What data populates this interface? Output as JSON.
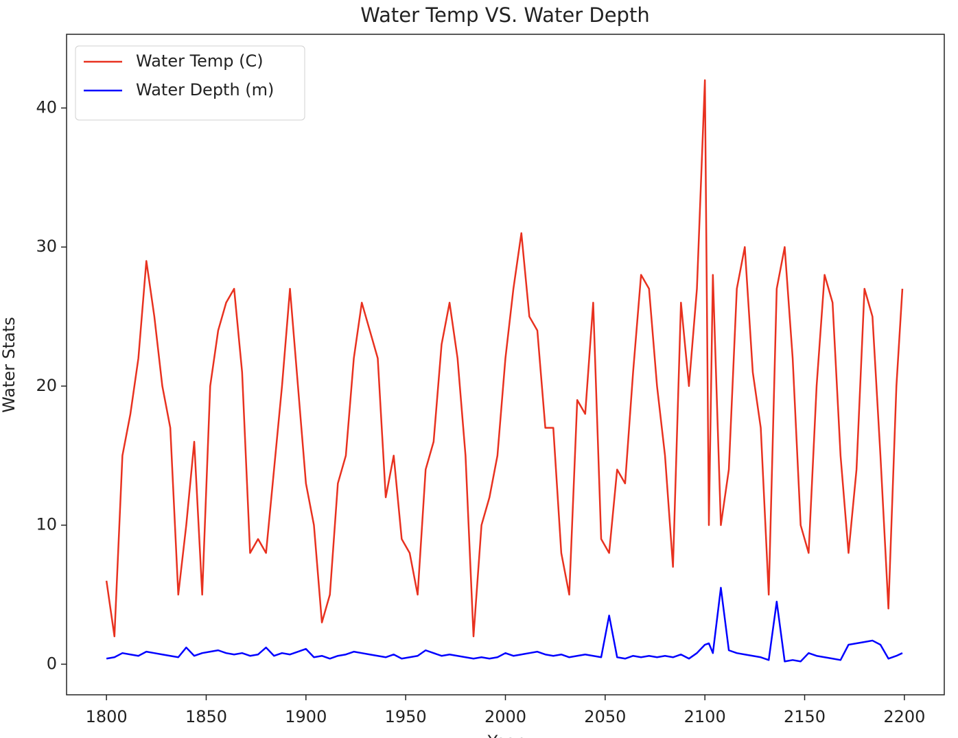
{
  "chart_data": {
    "type": "line",
    "title": "Water Temp VS. Water Depth",
    "xlabel": "Year",
    "ylabel": "Water Stats",
    "x": [
      1800,
      1804,
      1808,
      1812,
      1816,
      1820,
      1824,
      1828,
      1832,
      1836,
      1840,
      1844,
      1848,
      1852,
      1856,
      1860,
      1864,
      1868,
      1872,
      1876,
      1880,
      1884,
      1888,
      1892,
      1896,
      1900,
      1904,
      1908,
      1912,
      1916,
      1920,
      1924,
      1928,
      1932,
      1936,
      1940,
      1944,
      1948,
      1952,
      1956,
      1960,
      1964,
      1968,
      1972,
      1976,
      1980,
      1984,
      1988,
      1992,
      1996,
      2000,
      2004,
      2008,
      2012,
      2016,
      2020,
      2024,
      2028,
      2032,
      2036,
      2040,
      2044,
      2048,
      2052,
      2056,
      2060,
      2064,
      2068,
      2072,
      2076,
      2080,
      2084,
      2088,
      2092,
      2096,
      2100,
      2102,
      2104,
      2108,
      2112,
      2116,
      2120,
      2124,
      2128,
      2132,
      2136,
      2140,
      2144,
      2148,
      2152,
      2156,
      2160,
      2164,
      2168,
      2172,
      2176,
      2180,
      2184,
      2188,
      2192,
      2196,
      2199
    ],
    "series": [
      {
        "name": "Water Temp (C)",
        "color": "#e8311f",
        "values": [
          6,
          2,
          15,
          18,
          22,
          29,
          25,
          20,
          17,
          5,
          10,
          16,
          5,
          20,
          24,
          26,
          27,
          21,
          8,
          9,
          8,
          14,
          20,
          27,
          20,
          13,
          10,
          3,
          5,
          13,
          15,
          22,
          26,
          24,
          22,
          12,
          15,
          9,
          8,
          5,
          14,
          16,
          23,
          26,
          22,
          15,
          2,
          10,
          12,
          15,
          22,
          27,
          31,
          25,
          24,
          17,
          17,
          8,
          5,
          19,
          18,
          26,
          9,
          8,
          14,
          13,
          21,
          28,
          27,
          20,
          15,
          7,
          26,
          20,
          27,
          42,
          10,
          28,
          10,
          14,
          27,
          30,
          21,
          17,
          5,
          27,
          30,
          22,
          10,
          8,
          20,
          28,
          26,
          15,
          8,
          14,
          27,
          25,
          15,
          4,
          20,
          27
        ]
      },
      {
        "name": "Water Depth (m)",
        "color": "#0000ff",
        "values": [
          0.4,
          0.5,
          0.8,
          0.7,
          0.6,
          0.9,
          0.8,
          0.7,
          0.6,
          0.5,
          1.2,
          0.6,
          0.8,
          0.9,
          1.0,
          0.8,
          0.7,
          0.8,
          0.6,
          0.7,
          1.2,
          0.6,
          0.8,
          0.7,
          0.9,
          1.1,
          0.5,
          0.6,
          0.4,
          0.6,
          0.7,
          0.9,
          0.8,
          0.7,
          0.6,
          0.5,
          0.7,
          0.4,
          0.5,
          0.6,
          1.0,
          0.8,
          0.6,
          0.7,
          0.6,
          0.5,
          0.4,
          0.5,
          0.4,
          0.5,
          0.8,
          0.6,
          0.7,
          0.8,
          0.9,
          0.7,
          0.6,
          0.7,
          0.5,
          0.6,
          0.7,
          0.6,
          0.5,
          3.5,
          0.5,
          0.4,
          0.6,
          0.5,
          0.6,
          0.5,
          0.6,
          0.5,
          0.7,
          0.4,
          0.8,
          1.4,
          1.5,
          0.8,
          5.5,
          1.0,
          0.8,
          0.7,
          0.6,
          0.5,
          0.3,
          4.5,
          0.2,
          0.3,
          0.2,
          0.8,
          0.6,
          0.5,
          0.4,
          0.3,
          1.4,
          1.5,
          1.6,
          1.7,
          1.4,
          0.4,
          0.6,
          0.8
        ]
      }
    ],
    "xlim": [
      1780,
      2220
    ],
    "ylim": [
      -2.2,
      45.3
    ],
    "xticks": [
      1800,
      1850,
      1900,
      1950,
      2000,
      2050,
      2100,
      2150,
      2200
    ],
    "yticks": [
      0,
      10,
      20,
      30,
      40
    ],
    "legend": "upper left"
  }
}
